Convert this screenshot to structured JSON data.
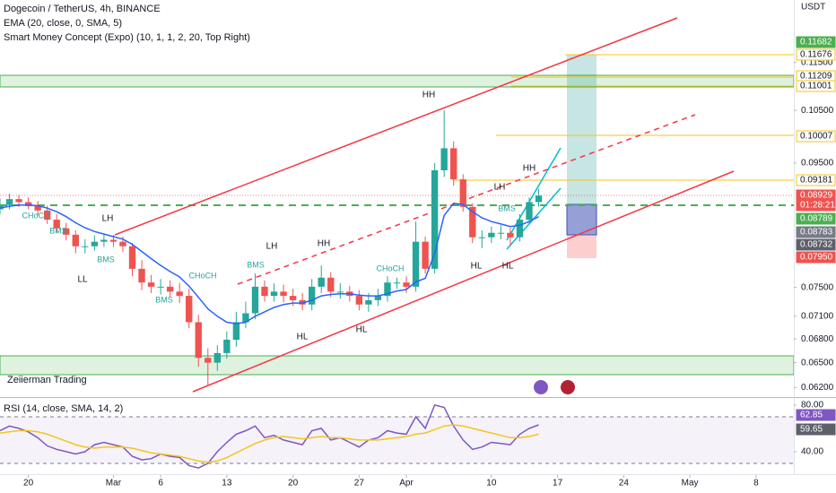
{
  "chart_data": [
    {
      "type": "candlestick",
      "title": "Dogecoin / TetherUS, 4h, BINANCE",
      "indicators": [
        "EMA (20, close, 0, SMA, 5)",
        "Smart Money Concept (Expo) (10, 1, 1, 2, 20, Top Right)"
      ],
      "watermark": "Zeiierman Trading",
      "y_axis_label": "USDT",
      "log_scale": true,
      "up_color": "#26a69a",
      "down_color": "#ef5350",
      "open": [
        0.087,
        0.0877,
        0.0887,
        0.0882,
        0.0877,
        0.0868,
        0.0853,
        0.0839,
        0.0829,
        0.0811,
        0.0811,
        0.0818,
        0.0821,
        0.0818,
        0.0811,
        0.0777,
        0.0757,
        0.0751,
        0.0751,
        0.0744,
        0.0738,
        0.0702,
        0.0656,
        0.065,
        0.0662,
        0.0679,
        0.0702,
        0.0714,
        0.0751,
        0.0738,
        0.0744,
        0.0738,
        0.0732,
        0.0726,
        0.0751,
        0.0764,
        0.0744,
        0.0744,
        0.0738,
        0.0726,
        0.0732,
        0.0738,
        0.0757,
        0.0757,
        0.0751,
        0.0818,
        0.0777,
        0.0937,
        0.0977,
        0.0921,
        0.0874,
        0.0825,
        0.0825,
        0.0832,
        0.0832,
        0.0825,
        0.0853,
        0.0882
      ],
      "high": [
        0.0888,
        0.0896,
        0.0894,
        0.089,
        0.0884,
        0.0876,
        0.0862,
        0.0848,
        0.0836,
        0.0822,
        0.0828,
        0.083,
        0.0829,
        0.0826,
        0.0816,
        0.079,
        0.0768,
        0.0762,
        0.076,
        0.0756,
        0.0748,
        0.0712,
        0.0668,
        0.0672,
        0.069,
        0.0716,
        0.073,
        0.077,
        0.076,
        0.0756,
        0.0754,
        0.0748,
        0.0742,
        0.0762,
        0.0782,
        0.0772,
        0.0756,
        0.0752,
        0.0746,
        0.0742,
        0.0748,
        0.0766,
        0.0764,
        0.0766,
        0.085,
        0.0826,
        0.095,
        0.105,
        0.099,
        0.093,
        0.088,
        0.0836,
        0.0842,
        0.0844,
        0.084,
        0.0862,
        0.089,
        0.0905
      ],
      "low": [
        0.0862,
        0.087,
        0.0874,
        0.087,
        0.086,
        0.0846,
        0.0832,
        0.082,
        0.08,
        0.08,
        0.0804,
        0.081,
        0.081,
        0.0802,
        0.0766,
        0.0746,
        0.0742,
        0.074,
        0.0736,
        0.0728,
        0.0694,
        0.0645,
        0.0622,
        0.064,
        0.0655,
        0.067,
        0.0694,
        0.0706,
        0.073,
        0.073,
        0.0729,
        0.0724,
        0.0718,
        0.0718,
        0.0742,
        0.0736,
        0.0734,
        0.073,
        0.0718,
        0.0716,
        0.0724,
        0.073,
        0.0748,
        0.0742,
        0.0744,
        0.077,
        0.077,
        0.0925,
        0.091,
        0.0866,
        0.0816,
        0.0808,
        0.0816,
        0.0822,
        0.0812,
        0.0818,
        0.0846,
        0.0874
      ],
      "close": [
        0.0877,
        0.0887,
        0.0882,
        0.0877,
        0.0868,
        0.0853,
        0.0839,
        0.0829,
        0.0811,
        0.0811,
        0.0818,
        0.0821,
        0.0818,
        0.0811,
        0.0777,
        0.0757,
        0.0751,
        0.0751,
        0.0744,
        0.0738,
        0.0702,
        0.0656,
        0.065,
        0.0662,
        0.0679,
        0.0702,
        0.0714,
        0.0751,
        0.0738,
        0.0744,
        0.0738,
        0.0732,
        0.0726,
        0.0751,
        0.0764,
        0.0744,
        0.0744,
        0.0738,
        0.0726,
        0.0732,
        0.0738,
        0.0757,
        0.0757,
        0.0751,
        0.0818,
        0.0777,
        0.0937,
        0.0977,
        0.0921,
        0.0874,
        0.0825,
        0.0825,
        0.0832,
        0.0832,
        0.0825,
        0.0853,
        0.0882,
        0.0893
      ],
      "series": [
        {
          "color": "#2962ff",
          "values": [
            0.0872,
            0.0875,
            0.0877,
            0.0877,
            0.0876,
            0.0872,
            0.0866,
            0.0858,
            0.0848,
            0.084,
            0.0834,
            0.083,
            0.0826,
            0.0822,
            0.0814,
            0.0803,
            0.0792,
            0.0782,
            0.0773,
            0.0765,
            0.0752,
            0.0736,
            0.072,
            0.071,
            0.0702,
            0.07,
            0.0702,
            0.071,
            0.0716,
            0.0722,
            0.0726,
            0.0728,
            0.0728,
            0.0732,
            0.0738,
            0.074,
            0.0741,
            0.0741,
            0.0739,
            0.0738,
            0.0738,
            0.0741,
            0.0745,
            0.0747,
            0.0758,
            0.0763,
            0.08,
            0.086,
            0.088,
            0.0878,
            0.0866,
            0.0856,
            0.085,
            0.0846,
            0.0842,
            0.0844,
            0.085,
            0.0858
          ]
        }
      ],
      "xlim": [
        0,
        84
      ],
      "xticks": [
        {
          "value": 3,
          "label": "20"
        },
        {
          "value": 12,
          "label": "Mar"
        },
        {
          "value": 17,
          "label": "6"
        },
        {
          "value": 24,
          "label": "13"
        },
        {
          "value": 31,
          "label": "20"
        },
        {
          "value": 38,
          "label": "27"
        },
        {
          "value": 43,
          "label": "Apr"
        },
        {
          "value": 52,
          "label": "10"
        },
        {
          "value": 59,
          "label": "17"
        },
        {
          "value": 66,
          "label": "24"
        },
        {
          "value": 73,
          "label": "May"
        },
        {
          "value": 80,
          "label": "8"
        }
      ],
      "ylim": [
        0.0612,
        0.1295
      ],
      "yticks": [
        {
          "value": 0.115,
          "label": "0.11500"
        },
        {
          "value": 0.105,
          "label": "0.10500"
        },
        {
          "value": 0.095,
          "label": "0.09500"
        },
        {
          "value": 0.075,
          "label": "0.07500"
        },
        {
          "value": 0.071,
          "label": "0.07100"
        },
        {
          "value": 0.068,
          "label": "0.06800"
        },
        {
          "value": 0.065,
          "label": "0.06500"
        },
        {
          "value": 0.062,
          "label": "0.06200"
        }
      ],
      "price_tags": [
        {
          "value": 0.11682,
          "label": "0.11682",
          "color": "#4caf50"
        },
        {
          "value": 0.11676,
          "label": "0.11676",
          "color": "#f5c518"
        },
        {
          "value": 0.11209,
          "label": "0.11209",
          "color": "#f5c518"
        },
        {
          "value": 0.11001,
          "label": "0.11001",
          "color": "#f5c518"
        },
        {
          "value": 0.10007,
          "label": "0.10007",
          "color": "#f5c518"
        },
        {
          "value": 0.09181,
          "label": "0.09181",
          "color": "#f5c518"
        },
        {
          "value": 0.08929,
          "label": "0.08929",
          "color": "#ef5350"
        },
        {
          "label": "01:28:21",
          "color": "#ef5350"
        },
        {
          "value": 0.08789,
          "label": "0.08789",
          "color": "#4caf50"
        },
        {
          "value": 0.08783,
          "label": "0.08783",
          "color": "#787b86"
        },
        {
          "value": 0.08732,
          "label": "0.08732",
          "color": "#5d606b"
        },
        {
          "value": 0.0795,
          "label": "0.07950",
          "color": "#ef5350"
        }
      ],
      "annotations": [
        {
          "text": "HH",
          "color": "#131722"
        },
        {
          "text": "LH",
          "color": "#131722"
        },
        {
          "text": "LL",
          "color": "#131722"
        },
        {
          "text": "LH",
          "color": "#131722"
        },
        {
          "text": "HH",
          "color": "#131722"
        },
        {
          "text": "HL",
          "color": "#131722"
        },
        {
          "text": "HL",
          "color": "#131722"
        },
        {
          "text": "HL",
          "color": "#131722"
        },
        {
          "text": "HL",
          "color": "#131722"
        },
        {
          "text": "LH",
          "color": "#131722"
        },
        {
          "text": "HH",
          "color": "#131722"
        },
        {
          "text": "CHoCH",
          "color": "#26a69a"
        },
        {
          "text": "CHoCH",
          "color": "#26a69a"
        },
        {
          "text": "CHoCH",
          "color": "#26a69a"
        },
        {
          "text": "BMS",
          "color": "#26a69a"
        },
        {
          "text": "BMS",
          "color": "#26a69a"
        },
        {
          "text": "BMS",
          "color": "#26a69a"
        },
        {
          "text": "BMS",
          "color": "#26a69a"
        },
        {
          "text": "BMS",
          "color": "#26a69a"
        }
      ]
    },
    {
      "type": "line",
      "title": "RSI (14, close, SMA, 14, 2)",
      "series": [
        {
          "color": "#7e57c2",
          "values": [
            58,
            62,
            60,
            57,
            52,
            45,
            42,
            40,
            38,
            40,
            46,
            48,
            46,
            44,
            36,
            33,
            34,
            38,
            36,
            35,
            28,
            26,
            30,
            40,
            48,
            55,
            58,
            62,
            52,
            54,
            50,
            48,
            46,
            58,
            60,
            50,
            52,
            48,
            44,
            50,
            52,
            58,
            56,
            55,
            70,
            60,
            80,
            78,
            62,
            50,
            42,
            44,
            48,
            47,
            46,
            55,
            60,
            63
          ]
        },
        {
          "color": "#f5c518",
          "values": [
            56,
            57,
            58,
            58,
            57,
            55,
            52,
            49,
            46,
            44,
            43,
            44,
            44,
            44,
            43,
            41,
            39,
            38,
            37,
            36,
            34,
            32,
            31,
            32,
            35,
            39,
            43,
            47,
            50,
            52,
            53,
            52,
            51,
            52,
            53,
            52,
            52,
            51,
            50,
            50,
            50,
            51,
            52,
            53,
            55,
            56,
            59,
            62,
            63,
            62,
            60,
            58,
            56,
            54,
            52,
            52,
            53,
            55
          ]
        }
      ],
      "ylim": [
        21.5,
        83.8
      ],
      "yticks": [
        {
          "value": 80,
          "label": "80.00"
        },
        {
          "value": 40,
          "label": "40.00"
        }
      ],
      "price_tags": [
        {
          "value": 62.85,
          "label": "62.85",
          "color": "#7e57c2"
        },
        {
          "value": 59.65,
          "label": "59.65",
          "color": "#5d606b"
        }
      ]
    }
  ]
}
